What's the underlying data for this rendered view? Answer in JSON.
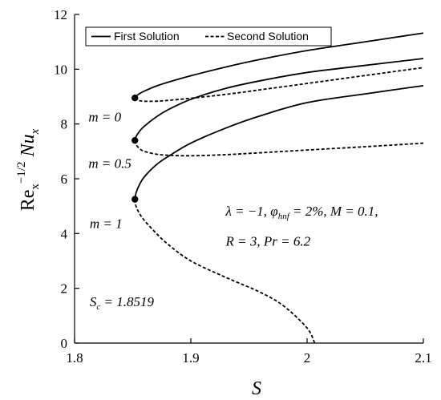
{
  "chart_data": {
    "type": "line",
    "title": "",
    "xlabel": "S",
    "ylabel": "Re_x^{-1/2} Nu_x",
    "xlim": [
      1.8,
      2.1
    ],
    "ylim": [
      0,
      12
    ],
    "xticks": [
      1.8,
      1.9,
      2.0,
      2.1
    ],
    "xtick_labels": [
      "1.8",
      "1.9",
      "2",
      "2.1"
    ],
    "yticks": [
      0,
      2,
      4,
      6,
      8,
      10,
      12
    ],
    "ytick_labels": [
      "0",
      "2",
      "4",
      "6",
      "8",
      "10",
      "12"
    ],
    "grid": false,
    "legend": {
      "position": "top-left",
      "entries": [
        {
          "label": "First Solution",
          "style": "solid"
        },
        {
          "label": "Second Solution",
          "style": "dashed"
        }
      ]
    },
    "series": [
      {
        "name": "First Solution",
        "group": "m = 0",
        "style": "solid",
        "x": [
          1.8519,
          1.853,
          1.856,
          1.86,
          1.87,
          1.88,
          1.9,
          1.93,
          1.96,
          2.0,
          2.05,
          2.1
        ],
        "y": [
          8.95,
          9.02,
          9.11,
          9.2,
          9.38,
          9.52,
          9.76,
          10.08,
          10.36,
          10.68,
          11.0,
          11.32
        ]
      },
      {
        "name": "Second Solution",
        "group": "m = 0",
        "style": "dashed",
        "x": [
          1.8519,
          1.853,
          1.856,
          1.86,
          1.87,
          1.88,
          1.9,
          1.93,
          1.96,
          2.0,
          2.05,
          2.1
        ],
        "y": [
          8.95,
          8.89,
          8.85,
          8.83,
          8.83,
          8.86,
          8.94,
          9.08,
          9.25,
          9.48,
          9.77,
          10.06
        ]
      },
      {
        "name": "First Solution",
        "group": "m = 0.5",
        "style": "solid",
        "x": [
          1.8519,
          1.853,
          1.856,
          1.86,
          1.87,
          1.88,
          1.9,
          1.93,
          1.96,
          2.0,
          2.05,
          2.1
        ],
        "y": [
          7.4,
          7.55,
          7.74,
          7.92,
          8.25,
          8.51,
          8.9,
          9.3,
          9.58,
          9.88,
          10.14,
          10.39
        ]
      },
      {
        "name": "Second Solution",
        "group": "m = 0.5",
        "style": "dashed",
        "x": [
          1.8519,
          1.853,
          1.856,
          1.86,
          1.87,
          1.88,
          1.9,
          1.93,
          1.96,
          2.0,
          2.05,
          2.1
        ],
        "y": [
          7.4,
          7.24,
          7.1,
          7.0,
          6.9,
          6.86,
          6.84,
          6.88,
          6.95,
          7.05,
          7.17,
          7.3
        ]
      },
      {
        "name": "First Solution",
        "group": "m = 1",
        "style": "solid",
        "x": [
          1.8519,
          1.853,
          1.856,
          1.86,
          1.87,
          1.88,
          1.9,
          1.93,
          1.96,
          2.0,
          2.05,
          2.1
        ],
        "y": [
          5.25,
          5.5,
          5.8,
          6.07,
          6.5,
          6.8,
          7.3,
          7.85,
          8.3,
          8.78,
          9.1,
          9.4
        ]
      },
      {
        "name": "Second Solution",
        "group": "m = 1",
        "style": "dashed",
        "x": [
          1.8519,
          1.853,
          1.856,
          1.86,
          1.87,
          1.88,
          1.9,
          1.93,
          1.96,
          1.98,
          2.0,
          2.0065
        ],
        "y": [
          5.25,
          4.98,
          4.72,
          4.48,
          4.02,
          3.62,
          3.0,
          2.4,
          1.85,
          1.35,
          0.55,
          0
        ]
      }
    ],
    "turning_points": [
      {
        "x": 1.8519,
        "y": 8.95
      },
      {
        "x": 1.8519,
        "y": 7.4
      },
      {
        "x": 1.8519,
        "y": 5.25
      }
    ],
    "annotations": [
      {
        "text": "m = 0",
        "x": 1.812,
        "y": 8.1
      },
      {
        "text": "m = 0.5",
        "x": 1.812,
        "y": 6.4
      },
      {
        "text": "m = 1",
        "x": 1.813,
        "y": 4.2
      },
      {
        "text": "λ = −1, φhnf = 2%, M = 0.1,",
        "x": 1.93,
        "y": 4.65
      },
      {
        "text": "R = 3, Pr = 6.2",
        "x": 1.93,
        "y": 3.55
      },
      {
        "text": "Sc = 1.8519",
        "x": 1.813,
        "y": 1.35
      }
    ]
  }
}
